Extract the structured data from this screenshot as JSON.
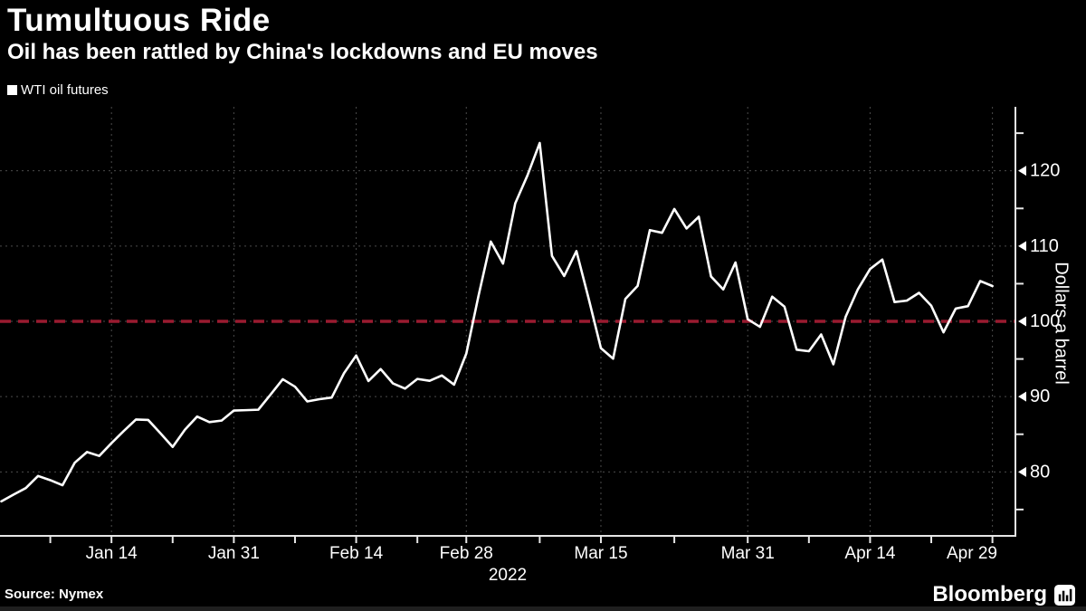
{
  "header": {
    "title": "Tumultuous Ride",
    "subtitle": "Oil has been rattled by China's lockdowns and EU moves"
  },
  "legend": {
    "position": "top-left",
    "items": [
      {
        "label": "WTI oil futures",
        "swatch_color": "#ffffff"
      }
    ]
  },
  "footer": {
    "source": "Source: Nymex",
    "brand": "Bloomberg",
    "brand_icon": "bar-chart-icon"
  },
  "chart_data": {
    "type": "line",
    "title": "Tumultuous Ride",
    "subtitle": "Oil has been rattled by China's lockdowns and EU moves",
    "ylabel": "Dollars a barrel",
    "xlabel": "",
    "background": "#000000",
    "grid": "dotted",
    "grid_color": "#4b4b4b",
    "axis_color": "#e6e6e6",
    "text_color": "#ffffff",
    "ylim": [
      71.5,
      128.5
    ],
    "yticks": [
      80,
      90,
      100,
      110,
      120
    ],
    "y_minor_ticks": [
      75,
      85,
      95,
      105,
      115,
      125
    ],
    "x_year_label": "2022",
    "x_major_ticks": [
      {
        "label": "Jan 14",
        "index": 9
      },
      {
        "label": "Jan 31",
        "index": 19
      },
      {
        "label": "Feb 14",
        "index": 29
      },
      {
        "label": "Feb 28",
        "index": 38
      },
      {
        "label": "Mar 15",
        "index": 49
      },
      {
        "label": "Mar 31",
        "index": 61
      },
      {
        "label": "Apr 14",
        "index": 71
      },
      {
        "label": "Apr 29",
        "index": 81
      }
    ],
    "x_minor_tick_indices": [
      4,
      14,
      24,
      34,
      44,
      55,
      66,
      76
    ],
    "reference_line": {
      "value": 100,
      "style": "dashed",
      "color": "#9a1b30"
    },
    "series": [
      {
        "name": "WTI oil futures",
        "color": "#ffffff",
        "x": [
          "Jan 3",
          "Jan 4",
          "Jan 5",
          "Jan 6",
          "Jan 7",
          "Jan 10",
          "Jan 11",
          "Jan 12",
          "Jan 13",
          "Jan 14",
          "Jan 18",
          "Jan 19",
          "Jan 20",
          "Jan 21",
          "Jan 24",
          "Jan 25",
          "Jan 26",
          "Jan 27",
          "Jan 28",
          "Jan 31",
          "Feb 1",
          "Feb 2",
          "Feb 3",
          "Feb 4",
          "Feb 7",
          "Feb 8",
          "Feb 9",
          "Feb 10",
          "Feb 11",
          "Feb 14",
          "Feb 15",
          "Feb 16",
          "Feb 17",
          "Feb 18",
          "Feb 22",
          "Feb 23",
          "Feb 24",
          "Feb 25",
          "Feb 28",
          "Mar 1",
          "Mar 2",
          "Mar 3",
          "Mar 4",
          "Mar 7",
          "Mar 8",
          "Mar 9",
          "Mar 10",
          "Mar 11",
          "Mar 14",
          "Mar 15",
          "Mar 16",
          "Mar 17",
          "Mar 18",
          "Mar 21",
          "Mar 22",
          "Mar 23",
          "Mar 24",
          "Mar 25",
          "Mar 28",
          "Mar 29",
          "Mar 30",
          "Mar 31",
          "Apr 1",
          "Apr 4",
          "Apr 5",
          "Apr 6",
          "Apr 7",
          "Apr 8",
          "Apr 11",
          "Apr 12",
          "Apr 13",
          "Apr 14",
          "Apr 18",
          "Apr 19",
          "Apr 20",
          "Apr 21",
          "Apr 22",
          "Apr 25",
          "Apr 26",
          "Apr 27",
          "Apr 28",
          "Apr 29"
        ],
        "values": [
          76.08,
          76.99,
          77.85,
          79.46,
          78.9,
          78.23,
          81.22,
          82.64,
          82.12,
          83.82,
          85.43,
          86.96,
          86.9,
          85.14,
          83.31,
          85.6,
          87.35,
          86.61,
          86.82,
          88.15,
          88.2,
          88.26,
          90.27,
          92.31,
          91.32,
          89.36,
          89.66,
          89.88,
          93.1,
          95.46,
          92.07,
          93.66,
          91.76,
          91.07,
          92.35,
          92.1,
          92.81,
          91.59,
          95.72,
          103.41,
          110.6,
          107.67,
          115.68,
          119.4,
          123.7,
          108.7,
          106.02,
          109.33,
          103.01,
          96.44,
          95.04,
          102.98,
          104.7,
          112.12,
          111.76,
          114.93,
          112.34,
          113.9,
          105.96,
          104.24,
          107.82,
          100.28,
          99.27,
          103.28,
          101.96,
          96.23,
          96.03,
          98.26,
          94.29,
          100.6,
          104.25,
          106.95,
          108.21,
          102.56,
          102.75,
          103.79,
          102.07,
          98.54,
          101.7,
          102.02,
          105.36,
          104.69
        ]
      }
    ]
  }
}
